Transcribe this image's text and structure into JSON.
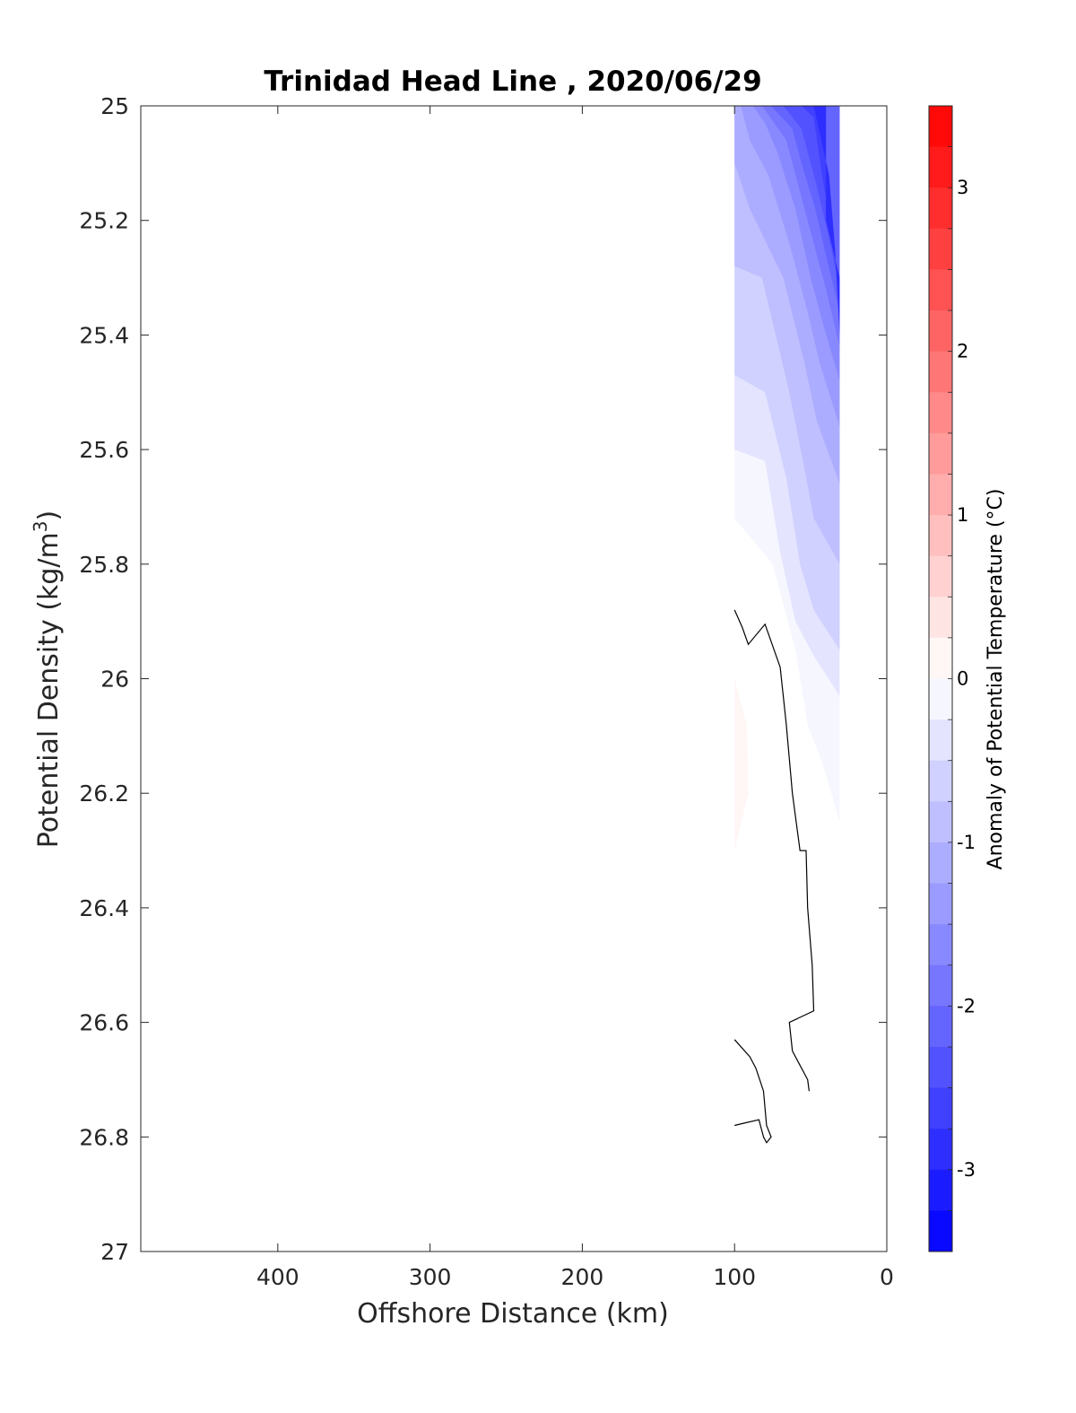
{
  "chart_data": {
    "type": "contour",
    "title": "Trinidad Head Line , 2020/06/29",
    "xlabel": "Offshore Distance (km)",
    "ylabel_main": "Potential Density (kg/m",
    "ylabel_sup": "3",
    "ylabel_close": ")",
    "xlim": [
      490,
      0
    ],
    "ylim": [
      25,
      27
    ],
    "x_reversed": true,
    "y_reversed": true,
    "xticks": [
      400,
      300,
      200,
      100,
      0
    ],
    "xtick_labels": [
      "400",
      "300",
      "200",
      "100",
      "0"
    ],
    "yticks": [
      25,
      25.2,
      25.4,
      25.6,
      25.8,
      26,
      26.2,
      26.4,
      26.6,
      26.8,
      27
    ],
    "ytick_labels": [
      "25",
      "25.2",
      "25.4",
      "25.6",
      "25.8",
      "26",
      "26.2",
      "26.4",
      "26.6",
      "26.8",
      "27"
    ],
    "colorbar": {
      "label": "Anomaly of Potential Temperature (°C)",
      "range": [
        -3.5,
        3.5
      ],
      "step": 0.25,
      "ticks": [
        3,
        2,
        1,
        0,
        -1,
        -2,
        -3
      ],
      "tick_labels": [
        "3",
        "2",
        "1",
        "0",
        "-1",
        "-2",
        "-3"
      ],
      "low_color": "#0000ff",
      "high_color": "#ff0000",
      "mid_color": "#ffffff"
    },
    "regions": [
      {
        "level": -0.125,
        "points": [
          [
            100,
            25
          ],
          [
            31,
            25
          ],
          [
            31,
            26.25
          ],
          [
            42,
            26.15
          ],
          [
            52,
            26.08
          ],
          [
            60,
            25.95
          ],
          [
            75,
            25.8
          ],
          [
            100,
            25.72
          ]
        ]
      },
      {
        "level": -0.375,
        "points": [
          [
            100,
            25
          ],
          [
            31,
            25
          ],
          [
            31,
            26.03
          ],
          [
            48,
            25.96
          ],
          [
            60,
            25.9
          ],
          [
            70,
            25.78
          ],
          [
            80,
            25.62
          ],
          [
            100,
            25.6
          ]
        ]
      },
      {
        "level": -0.625,
        "points": [
          [
            100,
            25
          ],
          [
            31,
            25
          ],
          [
            31,
            25.95
          ],
          [
            48,
            25.88
          ],
          [
            57,
            25.8
          ],
          [
            66,
            25.65
          ],
          [
            80,
            25.5
          ],
          [
            100,
            25.47
          ]
        ]
      },
      {
        "level": -0.875,
        "points": [
          [
            100,
            25
          ],
          [
            31,
            25
          ],
          [
            31,
            25.8
          ],
          [
            48,
            25.72
          ],
          [
            55,
            25.62
          ],
          [
            64,
            25.5
          ],
          [
            82,
            25.3
          ],
          [
            100,
            25.28
          ]
        ]
      },
      {
        "level": -1.125,
        "points": [
          [
            100,
            25
          ],
          [
            31,
            25
          ],
          [
            31,
            25.66
          ],
          [
            46,
            25.55
          ],
          [
            54,
            25.45
          ],
          [
            68,
            25.3
          ],
          [
            90,
            25.18
          ],
          [
            100,
            25.1
          ]
        ]
      },
      {
        "level": -1.375,
        "points": [
          [
            96,
            25
          ],
          [
            31,
            25
          ],
          [
            31,
            25.56
          ],
          [
            44,
            25.45
          ],
          [
            52,
            25.36
          ],
          [
            64,
            25.24
          ],
          [
            78,
            25.12
          ],
          [
            90,
            25.06
          ]
        ]
      },
      {
        "level": -1.625,
        "points": [
          [
            88,
            25
          ],
          [
            31,
            25
          ],
          [
            31,
            25.48
          ],
          [
            42,
            25.38
          ],
          [
            50,
            25.3
          ],
          [
            60,
            25.18
          ],
          [
            72,
            25.08
          ],
          [
            80,
            25.03
          ]
        ]
      },
      {
        "level": -1.875,
        "points": [
          [
            82,
            25
          ],
          [
            31,
            25
          ],
          [
            31,
            25.42
          ],
          [
            40,
            25.32
          ],
          [
            48,
            25.24
          ],
          [
            57,
            25.15
          ],
          [
            66,
            25.06
          ]
        ]
      },
      {
        "level": -2.125,
        "points": [
          [
            76,
            25
          ],
          [
            31,
            25
          ],
          [
            31,
            25.36
          ],
          [
            40,
            25.26
          ],
          [
            47,
            25.18
          ],
          [
            56,
            25.1
          ],
          [
            62,
            25.04
          ]
        ]
      },
      {
        "level": -2.375,
        "points": [
          [
            68,
            25
          ],
          [
            40,
            25
          ],
          [
            40,
            25.2
          ],
          [
            31,
            25.3
          ],
          [
            31,
            25.32
          ],
          [
            38,
            25.23
          ],
          [
            46,
            25.14
          ],
          [
            56,
            25.04
          ]
        ]
      },
      {
        "level": -2.625,
        "points": [
          [
            56,
            25
          ],
          [
            40,
            25
          ],
          [
            40,
            25.2
          ],
          [
            31,
            25.3
          ],
          [
            31,
            25.34
          ],
          [
            36,
            25.22
          ],
          [
            42,
            25.13
          ],
          [
            48,
            25.02
          ]
        ]
      },
      {
        "level": -2.875,
        "points": [
          [
            48,
            25
          ],
          [
            40,
            25
          ],
          [
            40,
            25.2
          ],
          [
            31,
            25.3
          ],
          [
            31,
            25.4
          ],
          [
            34,
            25.25
          ],
          [
            38,
            25.12
          ]
        ]
      },
      {
        "level": 0.125,
        "points": [
          [
            100,
            26.0
          ],
          [
            92,
            26.08
          ],
          [
            91,
            26.2
          ],
          [
            100,
            26.3
          ]
        ]
      }
    ],
    "contour_lines": [
      [
        [
          100,
          25.88
        ],
        [
          95,
          25.91
        ],
        [
          91,
          25.94
        ],
        [
          80,
          25.905
        ],
        [
          70,
          25.98
        ],
        [
          66,
          26.08
        ],
        [
          62,
          26.2
        ],
        [
          57,
          26.3
        ],
        [
          53,
          26.3
        ],
        [
          52,
          26.4
        ],
        [
          49,
          26.5
        ],
        [
          48,
          26.58
        ],
        [
          64,
          26.6
        ],
        [
          62,
          26.65
        ],
        [
          52,
          26.7
        ],
        [
          51,
          26.72
        ]
      ],
      [
        [
          100,
          26.63
        ],
        [
          90,
          26.66
        ],
        [
          86,
          26.68
        ],
        [
          81,
          26.72
        ],
        [
          79,
          26.78
        ],
        [
          76,
          26.8
        ],
        [
          79,
          26.81
        ],
        [
          81,
          26.8
        ],
        [
          84,
          26.77
        ],
        [
          94,
          26.776
        ],
        [
          100,
          26.78
        ]
      ]
    ]
  }
}
